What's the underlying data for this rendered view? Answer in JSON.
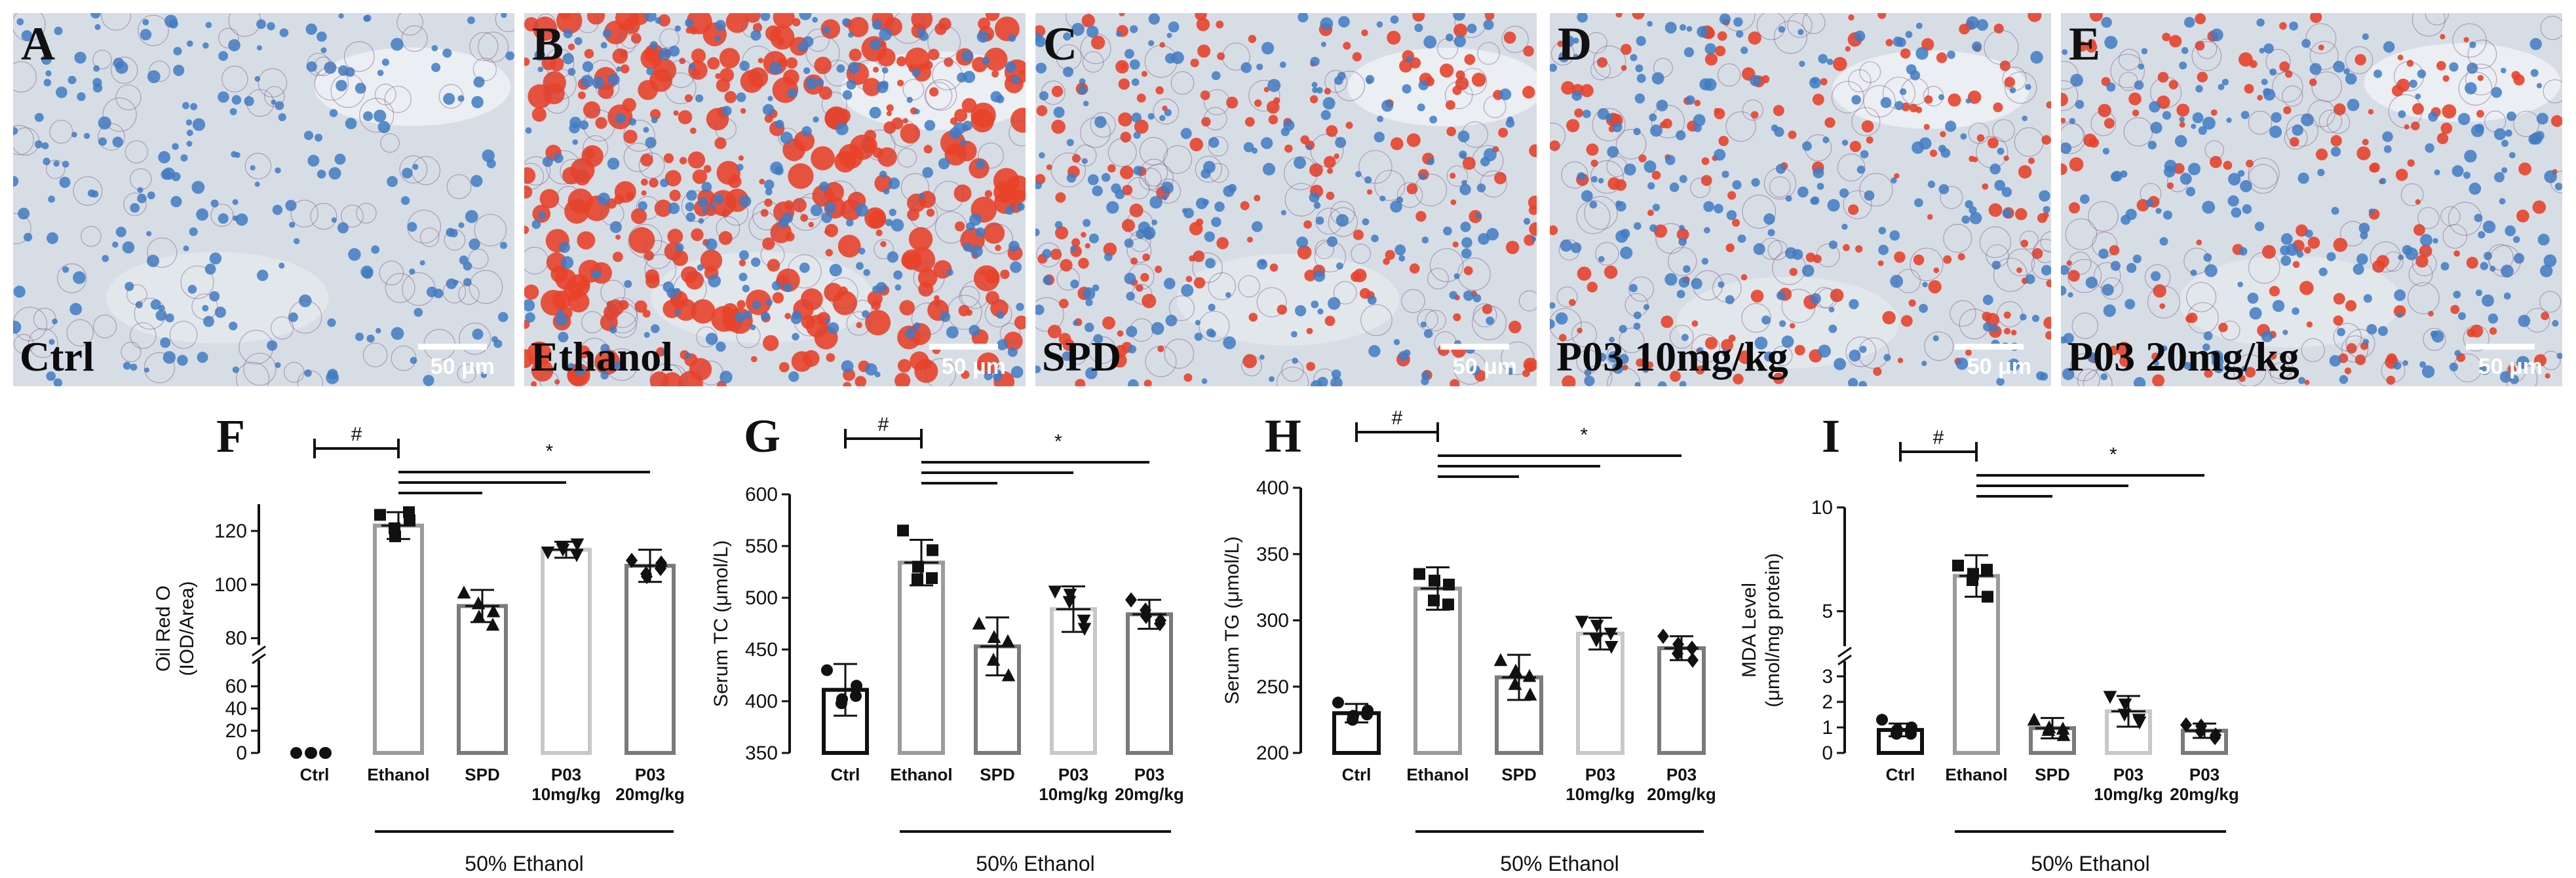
{
  "micrographs": [
    {
      "letter": "A",
      "condition": "Ctrl",
      "scale": "50 μm",
      "lipid": 0.0
    },
    {
      "letter": "B",
      "condition": "Ethanol",
      "scale": "50 μm",
      "lipid": 0.9
    },
    {
      "letter": "C",
      "condition": "SPD",
      "scale": "50 μm",
      "lipid": 0.45
    },
    {
      "letter": "D",
      "condition": "P03 10mg/kg",
      "scale": "50 μm",
      "lipid": 0.4
    },
    {
      "letter": "E",
      "condition": "P03 20mg/kg",
      "scale": "50 μm",
      "lipid": 0.35
    }
  ],
  "colors": {
    "lipid": "#e8432a",
    "nuclei": "#3f7bc4",
    "background": "#d7dde5",
    "bar_outline": "#7a7a7a"
  },
  "chart_data": [
    {
      "type": "bar",
      "panel": "F",
      "ylabel": "Oil Red O\n(IOD/Area)",
      "categories": [
        "Ctrl",
        "Ethanol",
        "SPD",
        "P03\n10mg/kg",
        "P03\n20mg/kg"
      ],
      "values": [
        0,
        122,
        92,
        113,
        107
      ],
      "sd": [
        0,
        5,
        6,
        3,
        6
      ],
      "points": [
        [
          0,
          0,
          0,
          0,
          0
        ],
        [
          126,
          118,
          121,
          124,
          127
        ],
        [
          97,
          88,
          93,
          90,
          85
        ],
        [
          112,
          113,
          114,
          115,
          111
        ],
        [
          109,
          103,
          104,
          108,
          106
        ]
      ],
      "markers": [
        "circle",
        "square",
        "triangle",
        "invtriangle",
        "diamond"
      ],
      "yaxis": {
        "broken": true,
        "lower": [
          0,
          70
        ],
        "upper": [
          75,
          130
        ],
        "ticks_lower": [
          0,
          20,
          40,
          60
        ],
        "ticks_upper": [
          80,
          100,
          120
        ]
      },
      "group_label": "50% Ethanol",
      "significance": {
        "control_mark": "#",
        "treatment_mark": "*"
      }
    },
    {
      "type": "bar",
      "panel": "G",
      "ylabel": "Serum TC (μmol/L)",
      "categories": [
        "Ctrl",
        "Ethanol",
        "SPD",
        "P03\n10mg/kg",
        "P03\n20mg/kg"
      ],
      "values": [
        411,
        534,
        453,
        489,
        484
      ],
      "sd": [
        25,
        22,
        28,
        22,
        14
      ],
      "points": [
        [
          430,
          402,
          398,
          415,
          405
        ],
        [
          565,
          530,
          518,
          546,
          519
        ],
        [
          475,
          462,
          440,
          425,
          458
        ],
        [
          506,
          503,
          496,
          470,
          478
        ],
        [
          498,
          482,
          488,
          478,
          475
        ]
      ],
      "markers": [
        "circle",
        "square",
        "triangle",
        "invtriangle",
        "diamond"
      ],
      "ylim": [
        350,
        600
      ],
      "yticks": [
        350,
        400,
        450,
        500,
        550,
        600
      ],
      "group_label": "50% Ethanol",
      "significance": {
        "control_mark": "#",
        "treatment_mark": "*"
      }
    },
    {
      "type": "bar",
      "panel": "H",
      "ylabel": "Serum TG (μmol/L)",
      "categories": [
        "Ctrl",
        "Ethanol",
        "SPD",
        "P03\n10mg/kg",
        "P03\n20mg/kg"
      ],
      "values": [
        230,
        324,
        257,
        290,
        279
      ],
      "sd": [
        7,
        16,
        17,
        12,
        9
      ],
      "points": [
        [
          238,
          228,
          225,
          232,
          229
        ],
        [
          335,
          330,
          315,
          327,
          312
        ],
        [
          270,
          262,
          252,
          244,
          258
        ],
        [
          299,
          296,
          285,
          280,
          290
        ],
        [
          288,
          282,
          275,
          270,
          279
        ]
      ],
      "markers": [
        "circle",
        "square",
        "triangle",
        "invtriangle",
        "diamond"
      ],
      "ylim": [
        200,
        400
      ],
      "yticks": [
        200,
        250,
        300,
        350,
        400
      ],
      "group_label": "50% Ethanol",
      "significance": {
        "control_mark": "#",
        "treatment_mark": "*"
      }
    },
    {
      "type": "bar",
      "panel": "I",
      "ylabel": "MDA Level\n(μmol/mg protein)",
      "categories": [
        "Ctrl",
        "Ethanol",
        "SPD",
        "P03\n10mg/kg",
        "P03\n20mg/kg"
      ],
      "values": [
        0.9,
        6.7,
        0.97,
        1.63,
        0.87
      ],
      "sd": [
        0.25,
        1.0,
        0.4,
        0.6,
        0.28
      ],
      "points": [
        [
          1.3,
          0.9,
          0.75,
          1.0,
          0.75
        ],
        [
          7.2,
          6.8,
          6.5,
          5.7,
          7.0
        ],
        [
          1.3,
          1.0,
          0.9,
          0.7,
          0.95
        ],
        [
          2.2,
          1.9,
          1.5,
          1.2,
          1.3
        ],
        [
          1.1,
          1.05,
          0.85,
          0.7,
          0.6
        ]
      ],
      "markers": [
        "circle",
        "square",
        "triangle",
        "invtriangle",
        "diamond"
      ],
      "yaxis": {
        "broken": true,
        "lower": [
          0,
          3
        ],
        "upper": [
          3,
          10
        ],
        "ticks_lower": [
          0,
          1,
          2,
          3
        ],
        "ticks_upper": [
          5,
          10
        ]
      },
      "group_label": "50% Ethanol",
      "significance": {
        "control_mark": "#",
        "treatment_mark": "*"
      }
    }
  ]
}
